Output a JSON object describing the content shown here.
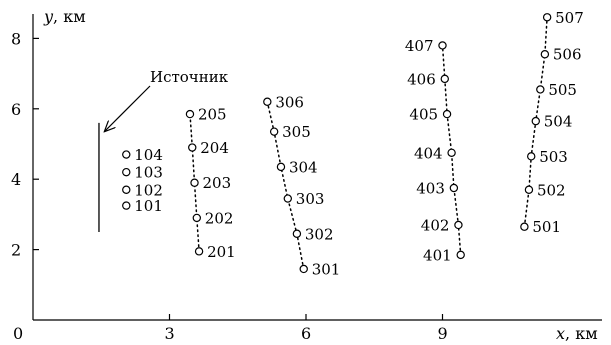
{
  "chart_data": {
    "type": "scatter",
    "xlabel": "x",
    "xunit": ", км",
    "ylabel": "y",
    "yunit": ", км",
    "xlim": [
      0,
      12.6
    ],
    "ylim": [
      0,
      8.4
    ],
    "x_ticks": [
      0,
      3,
      6,
      9
    ],
    "x_tick_labels": [
      "0",
      "3",
      "6",
      "9"
    ],
    "y_ticks": [
      2,
      4,
      6,
      8
    ],
    "y_tick_labels": [
      "2",
      "4",
      "6",
      "8"
    ],
    "grid": false,
    "source": {
      "label": "Источник",
      "x": 1.45,
      "y_range": [
        2.5,
        5.6
      ]
    },
    "series": [
      {
        "points": [
          {
            "label": "101",
            "x": 2.05,
            "y": 3.25
          },
          {
            "label": "102",
            "x": 2.05,
            "y": 3.7
          },
          {
            "label": "103",
            "x": 2.05,
            "y": 4.2
          },
          {
            "label": "104",
            "x": 2.05,
            "y": 4.7
          }
        ],
        "connected": false
      },
      {
        "points": [
          {
            "label": "201",
            "x": 3.65,
            "y": 1.95
          },
          {
            "label": "202",
            "x": 3.6,
            "y": 2.9
          },
          {
            "label": "203",
            "x": 3.55,
            "y": 3.9
          },
          {
            "label": "204",
            "x": 3.5,
            "y": 4.9
          },
          {
            "label": "205",
            "x": 3.45,
            "y": 5.85
          }
        ],
        "connected": true
      },
      {
        "points": [
          {
            "label": "301",
            "x": 5.95,
            "y": 1.45
          },
          {
            "label": "302",
            "x": 5.8,
            "y": 2.45
          },
          {
            "label": "303",
            "x": 5.6,
            "y": 3.45
          },
          {
            "label": "304",
            "x": 5.45,
            "y": 4.35
          },
          {
            "label": "305",
            "x": 5.3,
            "y": 5.35
          },
          {
            "label": "306",
            "x": 5.15,
            "y": 6.2
          }
        ],
        "connected": true
      },
      {
        "points": [
          {
            "label": "401",
            "x": 9.4,
            "y": 1.85
          },
          {
            "label": "402",
            "x": 9.35,
            "y": 2.7
          },
          {
            "label": "403",
            "x": 9.25,
            "y": 3.75
          },
          {
            "label": "404",
            "x": 9.2,
            "y": 4.75
          },
          {
            "label": "405",
            "x": 9.1,
            "y": 5.85
          },
          {
            "label": "406",
            "x": 9.05,
            "y": 6.85
          },
          {
            "label": "407",
            "x": 9.0,
            "y": 7.8
          }
        ],
        "connected": true
      },
      {
        "points": [
          {
            "label": "501",
            "x": 10.8,
            "y": 2.65
          },
          {
            "label": "502",
            "x": 10.9,
            "y": 3.7
          },
          {
            "label": "503",
            "x": 10.95,
            "y": 4.65
          },
          {
            "label": "504",
            "x": 11.05,
            "y": 5.65
          },
          {
            "label": "505",
            "x": 11.15,
            "y": 6.55
          },
          {
            "label": "506",
            "x": 11.25,
            "y": 7.55
          },
          {
            "label": "507",
            "x": 11.3,
            "y": 8.6
          }
        ],
        "connected": true
      }
    ]
  }
}
